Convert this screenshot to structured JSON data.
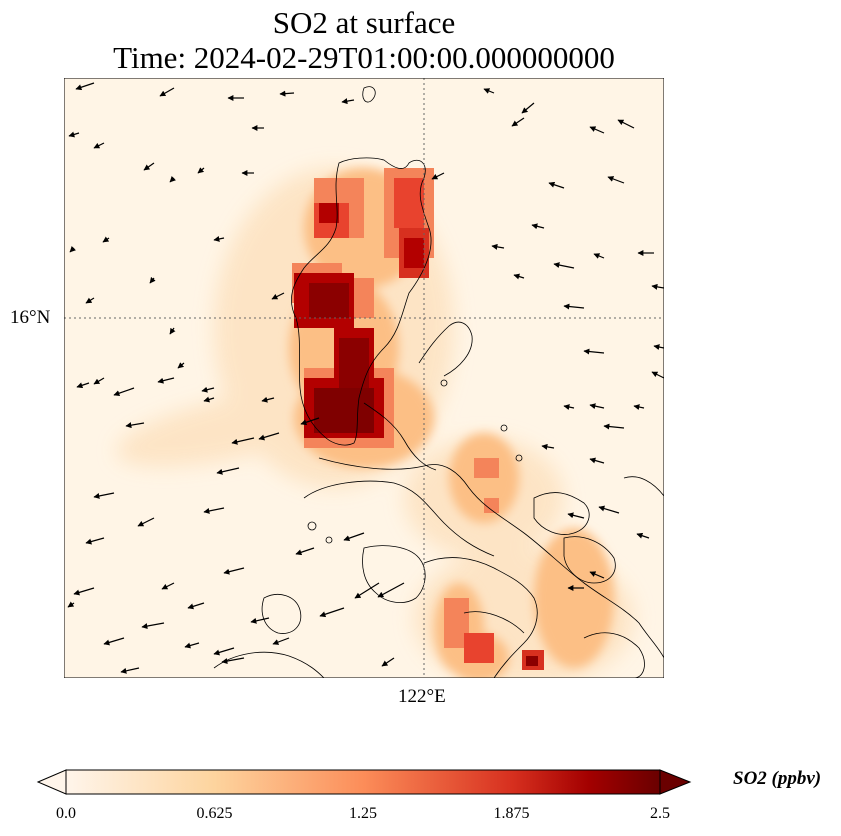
{
  "title": "SO2 at surface",
  "subtitle": "Time: 2024-02-29T01:00:00.000000000",
  "map": {
    "lat_label": "16°N",
    "lon_label": "122°E",
    "colormap": [
      "#fff5e6",
      "#fee3c0",
      "#fdc48a",
      "#fc8d59",
      "#ef5a3a",
      "#c81d1d",
      "#8b0000",
      "#6a0000"
    ]
  },
  "colorbar": {
    "label": "SO2 (ppbv)",
    "min": 0.0,
    "max": 2.5,
    "ticks": [
      "0.0",
      "0.625",
      "1.25",
      "1.875",
      "2.5"
    ],
    "extend": "both"
  }
}
